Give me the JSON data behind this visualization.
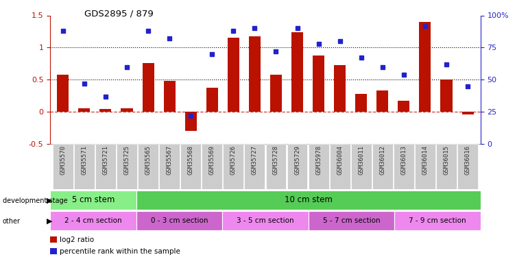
{
  "title": "GDS2895 / 879",
  "sample_labels": [
    "GSM35570",
    "GSM35571",
    "GSM35721",
    "GSM35725",
    "GSM35565",
    "GSM35567",
    "GSM35568",
    "GSM35569",
    "GSM35726",
    "GSM35727",
    "GSM35728",
    "GSM35729",
    "GSM35978",
    "GSM36004",
    "GSM36011",
    "GSM36012",
    "GSM36013",
    "GSM36014",
    "GSM36015",
    "GSM36016"
  ],
  "log2_ratio": [
    0.58,
    0.05,
    0.04,
    0.05,
    0.76,
    0.48,
    -0.3,
    0.38,
    1.15,
    1.18,
    0.58,
    1.24,
    0.88,
    0.73,
    0.28,
    0.33,
    0.17,
    1.4,
    0.5,
    -0.04
  ],
  "percentile": [
    88,
    47,
    37,
    60,
    88,
    82,
    22,
    70,
    88,
    90,
    72,
    90,
    78,
    80,
    67,
    60,
    54,
    92,
    62,
    45
  ],
  "bar_color": "#bb1100",
  "dot_color": "#2222cc",
  "ylim_left": [
    -0.5,
    1.5
  ],
  "ylim_right": [
    0,
    100
  ],
  "left_yticks": [
    -0.5,
    0.0,
    0.5,
    1.0,
    1.5
  ],
  "left_yticklabels": [
    "-0.5",
    "0",
    "0.5",
    "1",
    "1.5"
  ],
  "right_yticks": [
    0,
    25,
    50,
    75,
    100
  ],
  "right_yticklabels": [
    "0",
    "25",
    "50",
    "75",
    "100%"
  ],
  "hlines": [
    0.5,
    1.0
  ],
  "dev_stage_groups": [
    {
      "label": "5 cm stem",
      "start": 0,
      "end": 4,
      "color": "#88ee88"
    },
    {
      "label": "10 cm stem",
      "start": 4,
      "end": 20,
      "color": "#55cc55"
    }
  ],
  "other_groups": [
    {
      "label": "2 - 4 cm section",
      "start": 0,
      "end": 4,
      "color": "#ee88ee"
    },
    {
      "label": "0 - 3 cm section",
      "start": 4,
      "end": 8,
      "color": "#cc66cc"
    },
    {
      "label": "3 - 5 cm section",
      "start": 8,
      "end": 12,
      "color": "#ee88ee"
    },
    {
      "label": "5 - 7 cm section",
      "start": 12,
      "end": 16,
      "color": "#cc66cc"
    },
    {
      "label": "7 - 9 cm section",
      "start": 16,
      "end": 20,
      "color": "#ee88ee"
    }
  ],
  "legend_items": [
    {
      "label": "log2 ratio",
      "color": "#bb1100"
    },
    {
      "label": "percentile rank within the sample",
      "color": "#2222cc"
    }
  ],
  "bg_color": "#ffffff"
}
